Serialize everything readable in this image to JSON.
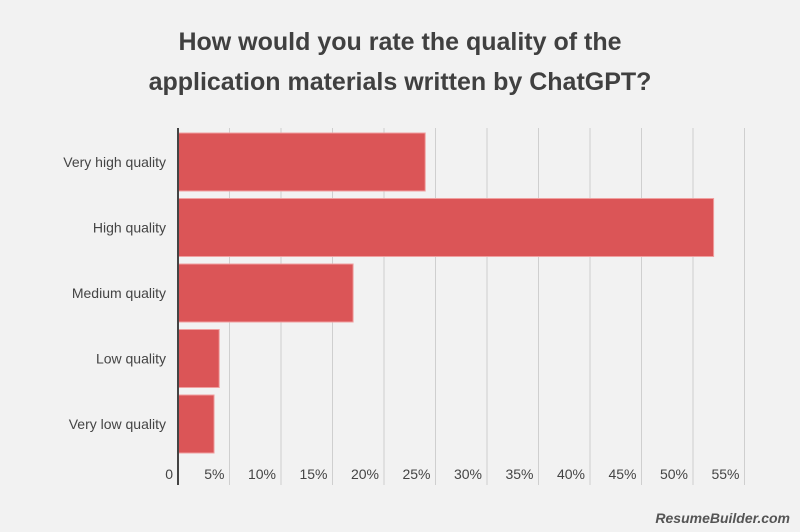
{
  "chart_data": {
    "type": "bar",
    "orientation": "horizontal",
    "title_lines": [
      "How would you rate the quality of the",
      "application materials written by ChatGPT?"
    ],
    "categories": [
      "Very high quality",
      "High quality",
      "Medium quality",
      "Low quality",
      "Very low quality"
    ],
    "values": [
      24,
      52,
      17,
      4,
      3.5
    ],
    "unit": "%",
    "xlim": [
      0,
      55
    ],
    "xticks": [
      0,
      5,
      10,
      15,
      20,
      25,
      30,
      35,
      40,
      45,
      50,
      55
    ],
    "xtick_labels": [
      "0",
      "5%",
      "10%",
      "15%",
      "20%",
      "25%",
      "30%",
      "35%",
      "40%",
      "45%",
      "50%",
      "55%"
    ],
    "bar_color": "#db5557",
    "grid": true,
    "legend": "none"
  },
  "watermark": "ResumeBuilder.com"
}
